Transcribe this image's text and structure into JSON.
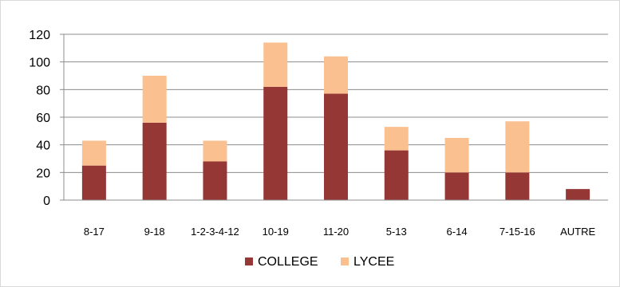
{
  "chart_data": {
    "type": "bar",
    "stacked": true,
    "categories": [
      "8-17",
      "9-18",
      "1-2-3-4-12",
      "10-19",
      "11-20",
      "5-13",
      "6-14",
      "7-15-16",
      "AUTRE"
    ],
    "series": [
      {
        "name": "COLLEGE",
        "color": "#953735",
        "values": [
          25,
          56,
          28,
          82,
          77,
          36,
          20,
          20,
          8
        ]
      },
      {
        "name": "LYCEE",
        "color": "#fac090",
        "values": [
          18,
          34,
          15,
          32,
          27,
          17,
          25,
          37,
          0
        ]
      }
    ],
    "yticks": [
      "0",
      "20",
      "40",
      "60",
      "80",
      "100",
      "120"
    ],
    "ylim": [
      0,
      120
    ],
    "grid": true,
    "legend": "bottom",
    "title": "",
    "xlabel": "",
    "ylabel": ""
  }
}
